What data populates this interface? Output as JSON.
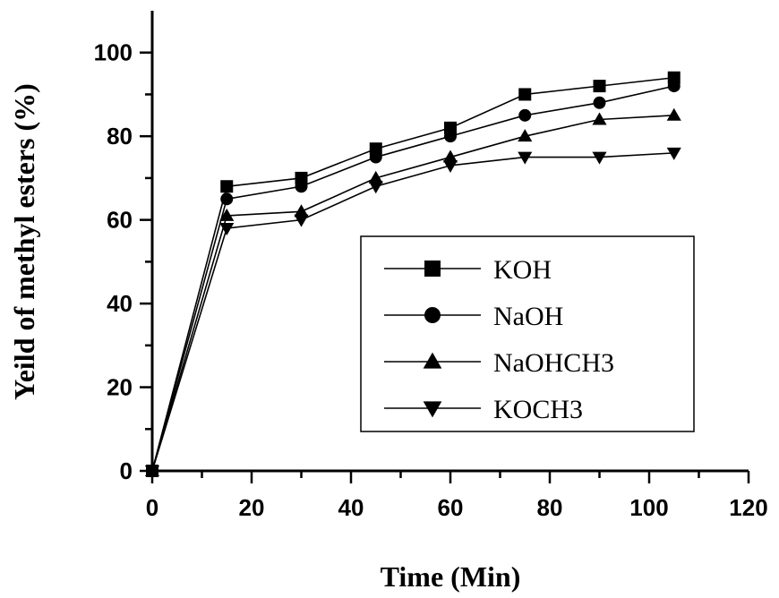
{
  "chart_data": {
    "type": "line",
    "title": "",
    "xlabel": "Time (Min)",
    "ylabel": "Yeild of methyl esters (%)",
    "xlim": [
      0,
      120
    ],
    "ylim": [
      0,
      110
    ],
    "xticks": [
      0,
      20,
      40,
      60,
      80,
      100,
      120
    ],
    "yticks": [
      0,
      20,
      40,
      60,
      80,
      100
    ],
    "grid": false,
    "legend_position": "center-right",
    "x": [
      0,
      15,
      30,
      45,
      60,
      75,
      90,
      105
    ],
    "series": [
      {
        "name": "KOH",
        "marker": "square",
        "values": [
          0,
          68,
          70,
          77,
          82,
          90,
          92,
          94
        ]
      },
      {
        "name": "NaOH",
        "marker": "circle",
        "values": [
          0,
          65,
          68,
          75,
          80,
          85,
          88,
          92
        ]
      },
      {
        "name": "NaOHCH3",
        "marker": "triangle-up",
        "values": [
          0,
          61,
          62,
          70,
          75,
          80,
          84,
          85
        ]
      },
      {
        "name": "KOCH3",
        "marker": "triangle-down",
        "values": [
          0,
          58,
          60,
          68,
          73,
          75,
          75,
          76
        ]
      }
    ]
  }
}
